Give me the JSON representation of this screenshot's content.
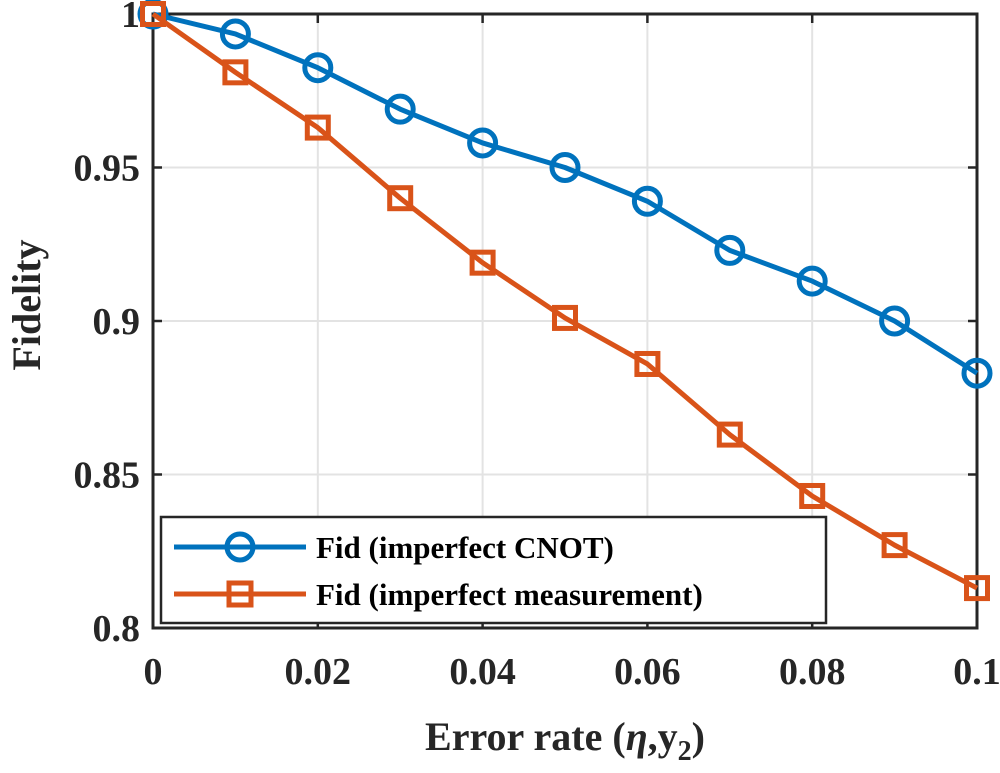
{
  "chart_data": {
    "type": "line",
    "xlabel_main": "Error rate (",
    "xlabel_eta": "η",
    "xlabel_y": ",y",
    "xlabel_sub": "2",
    "xlabel_close": ")",
    "ylabel": "Fidelity",
    "xlim": [
      0,
      0.1
    ],
    "ylim": [
      0.8,
      1
    ],
    "grid": true,
    "legend_position": "bottom-left",
    "x_ticks": [
      0,
      0.02,
      0.04,
      0.06,
      0.08,
      0.1
    ],
    "x_tick_labels": [
      "0",
      "0.02",
      "0.04",
      "0.06",
      "0.08",
      "0.1"
    ],
    "y_ticks": [
      0.8,
      0.85,
      0.9,
      0.95,
      1
    ],
    "y_tick_labels": [
      "0.8",
      "0.85",
      "0.9",
      "0.95",
      "1"
    ],
    "x": [
      0,
      0.01,
      0.02,
      0.03,
      0.04,
      0.05,
      0.06,
      0.07,
      0.08,
      0.09,
      0.1
    ],
    "series": [
      {
        "name": "Fid (imperfect CNOT)",
        "color": "#0072BD",
        "marker": "circle",
        "values": [
          1.0,
          0.9935,
          0.9825,
          0.969,
          0.958,
          0.95,
          0.939,
          0.923,
          0.913,
          0.9,
          0.883
        ]
      },
      {
        "name": "Fid (imperfect measurement)",
        "color": "#D95319",
        "marker": "square",
        "values": [
          1.0,
          0.981,
          0.963,
          0.94,
          0.919,
          0.901,
          0.886,
          0.863,
          0.843,
          0.827,
          0.813
        ]
      }
    ]
  }
}
